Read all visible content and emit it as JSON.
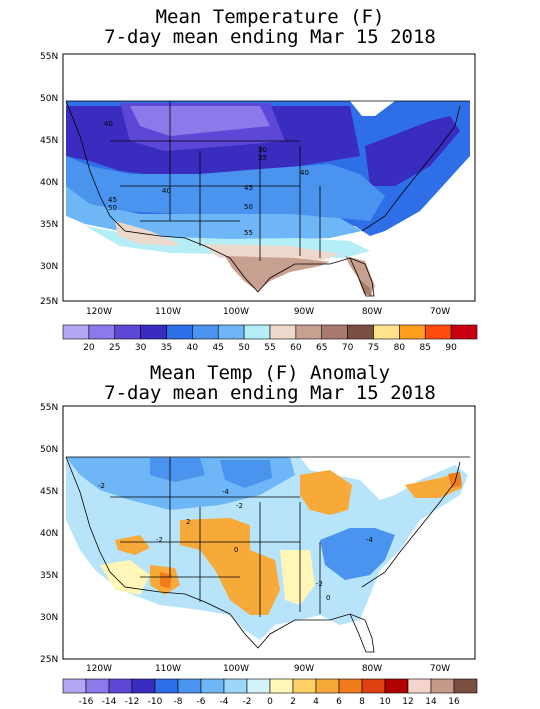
{
  "panel1": {
    "title_line1": "Mean Temperature (F)",
    "title_line2": "7-day mean ending Mar 15 2018",
    "lat_ticks": [
      "55N",
      "50N",
      "45N",
      "40N",
      "35N",
      "30N",
      "25N"
    ],
    "lon_ticks": [
      "120W",
      "110W",
      "100W",
      "90W",
      "80W",
      "70W"
    ],
    "contour_labels": [
      "40",
      "30",
      "35",
      "40",
      "40",
      "45",
      "45",
      "50",
      "50",
      "55"
    ],
    "legend_labels": [
      "20",
      "25",
      "30",
      "35",
      "40",
      "45",
      "50",
      "55",
      "60",
      "65",
      "70",
      "75",
      "80",
      "85",
      "90"
    ],
    "legend_colors": [
      "#b4a6f2",
      "#8d79ea",
      "#5c47d6",
      "#3a2cbe",
      "#2e6ee6",
      "#4a93ee",
      "#6fb6f6",
      "#b5eef7",
      "#ecd9cc",
      "#c8a090",
      "#a97a6c",
      "#7b4e42",
      "#ffe28a",
      "#ff9f1e",
      "#ff4a10",
      "#c80010"
    ]
  },
  "panel2": {
    "title_line1": "Mean Temp (F) Anomaly",
    "title_line2": "7-day mean ending Mar 15 2018",
    "lat_ticks": [
      "55N",
      "50N",
      "45N",
      "40N",
      "35N",
      "30N",
      "25N"
    ],
    "lon_ticks": [
      "120W",
      "110W",
      "100W",
      "90W",
      "80W",
      "70W"
    ],
    "contour_labels": [
      "-2",
      "-4",
      "-2",
      "2",
      "-2",
      "0",
      "-4",
      "-2",
      "0"
    ],
    "legend_labels": [
      "-16",
      "-14",
      "-12",
      "-10",
      "-8",
      "-6",
      "-4",
      "-2",
      "0",
      "2",
      "4",
      "6",
      "8",
      "10",
      "12",
      "14",
      "16"
    ],
    "legend_colors": [
      "#b4a6f2",
      "#8d79ea",
      "#5c47d6",
      "#3a2cbe",
      "#2e6ee6",
      "#4a93ee",
      "#6fb6f6",
      "#9ed6fa",
      "#d4f3fb",
      "#fff6b8",
      "#ffd066",
      "#f7a93a",
      "#f07c1c",
      "#e04010",
      "#b00000",
      "#f2d6cc",
      "#c49a8a",
      "#7b4e42"
    ]
  }
}
